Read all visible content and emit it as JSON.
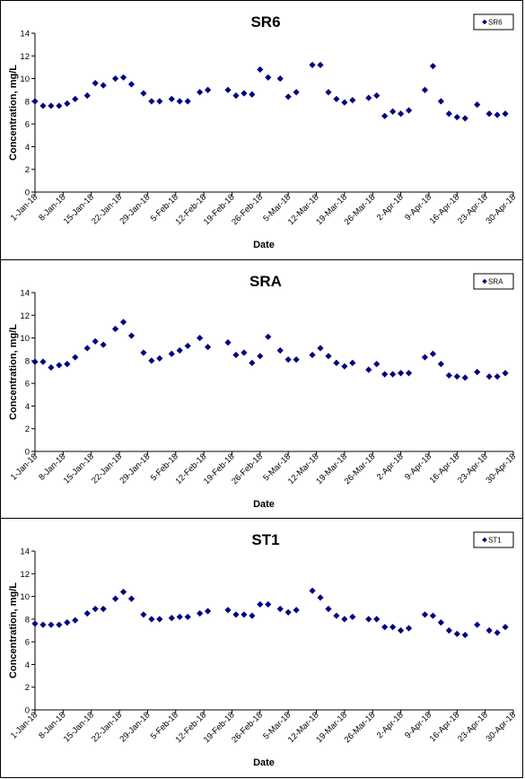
{
  "chart_data": [
    {
      "type": "scatter",
      "title": "SR6",
      "xlabel": "Date",
      "ylabel": "Concentration, mg/L",
      "ylim": [
        0,
        14
      ],
      "yticks": [
        "0",
        "2",
        "4",
        "6",
        "8",
        "10",
        "12",
        "14"
      ],
      "xlim": [
        "2018-01-01",
        "2018-04-30"
      ],
      "xticks": [
        "1-Jan-18",
        "8-Jan-18",
        "15-Jan-18",
        "22-Jan-18",
        "29-Jan-18",
        "5-Feb-18",
        "12-Feb-18",
        "19-Feb-18",
        "26-Feb-18",
        "5-Mar-18",
        "12-Mar-18",
        "19-Mar-18",
        "26-Mar-18",
        "2-Apr-18",
        "9-Apr-18",
        "16-Apr-18",
        "23-Apr-18",
        "30-Apr-18"
      ],
      "legend": "top-right",
      "color": "#000080",
      "series": [
        {
          "name": "SR6",
          "points": [
            [
              "2018-01-01",
              8.0
            ],
            [
              "2018-01-03",
              7.6
            ],
            [
              "2018-01-05",
              7.6
            ],
            [
              "2018-01-07",
              7.6
            ],
            [
              "2018-01-09",
              7.8
            ],
            [
              "2018-01-11",
              8.2
            ],
            [
              "2018-01-14",
              8.5
            ],
            [
              "2018-01-16",
              9.6
            ],
            [
              "2018-01-18",
              9.4
            ],
            [
              "2018-01-21",
              10.0
            ],
            [
              "2018-01-23",
              10.1
            ],
            [
              "2018-01-25",
              9.5
            ],
            [
              "2018-01-28",
              8.7
            ],
            [
              "2018-01-30",
              8.0
            ],
            [
              "2018-02-01",
              8.0
            ],
            [
              "2018-02-04",
              8.2
            ],
            [
              "2018-02-06",
              8.0
            ],
            [
              "2018-02-08",
              8.0
            ],
            [
              "2018-02-11",
              8.8
            ],
            [
              "2018-02-13",
              9.0
            ],
            [
              "2018-02-18",
              9.0
            ],
            [
              "2018-02-20",
              8.5
            ],
            [
              "2018-02-22",
              8.7
            ],
            [
              "2018-02-24",
              8.6
            ],
            [
              "2018-02-26",
              10.8
            ],
            [
              "2018-02-28",
              10.1
            ],
            [
              "2018-03-03",
              10.0
            ],
            [
              "2018-03-05",
              8.4
            ],
            [
              "2018-03-07",
              8.8
            ],
            [
              "2018-03-11",
              11.2
            ],
            [
              "2018-03-13",
              11.2
            ],
            [
              "2018-03-15",
              8.8
            ],
            [
              "2018-03-17",
              8.2
            ],
            [
              "2018-03-19",
              7.9
            ],
            [
              "2018-03-21",
              8.1
            ],
            [
              "2018-03-25",
              8.3
            ],
            [
              "2018-03-27",
              8.5
            ],
            [
              "2018-03-29",
              6.7
            ],
            [
              "2018-03-31",
              7.1
            ],
            [
              "2018-04-02",
              6.9
            ],
            [
              "2018-04-04",
              7.2
            ],
            [
              "2018-04-08",
              9.0
            ],
            [
              "2018-04-10",
              11.1
            ],
            [
              "2018-04-12",
              8.0
            ],
            [
              "2018-04-14",
              6.9
            ],
            [
              "2018-04-16",
              6.6
            ],
            [
              "2018-04-18",
              6.5
            ],
            [
              "2018-04-21",
              7.7
            ],
            [
              "2018-04-24",
              6.9
            ],
            [
              "2018-04-26",
              6.8
            ],
            [
              "2018-04-28",
              6.9
            ]
          ]
        }
      ]
    },
    {
      "type": "scatter",
      "title": "SRA",
      "xlabel": "Date",
      "ylabel": "Concentration, mg/L",
      "ylim": [
        0,
        14
      ],
      "yticks": [
        "0",
        "2",
        "4",
        "6",
        "8",
        "10",
        "12",
        "14"
      ],
      "xlim": [
        "2018-01-01",
        "2018-04-30"
      ],
      "xticks": [
        "1-Jan-18",
        "8-Jan-18",
        "15-Jan-18",
        "22-Jan-18",
        "29-Jan-18",
        "5-Feb-18",
        "12-Feb-18",
        "19-Feb-18",
        "26-Feb-18",
        "5-Mar-18",
        "12-Mar-18",
        "19-Mar-18",
        "26-Mar-18",
        "2-Apr-18",
        "9-Apr-18",
        "16-Apr-18",
        "23-Apr-18",
        "30-Apr-18"
      ],
      "legend": "top-right",
      "color": "#000080",
      "series": [
        {
          "name": "SRA",
          "points": [
            [
              "2018-01-01",
              7.9
            ],
            [
              "2018-01-03",
              7.9
            ],
            [
              "2018-01-05",
              7.4
            ],
            [
              "2018-01-07",
              7.6
            ],
            [
              "2018-01-09",
              7.7
            ],
            [
              "2018-01-11",
              8.3
            ],
            [
              "2018-01-14",
              9.1
            ],
            [
              "2018-01-16",
              9.7
            ],
            [
              "2018-01-18",
              9.4
            ],
            [
              "2018-01-21",
              10.8
            ],
            [
              "2018-01-23",
              11.4
            ],
            [
              "2018-01-25",
              10.2
            ],
            [
              "2018-01-28",
              8.7
            ],
            [
              "2018-01-30",
              8.0
            ],
            [
              "2018-02-01",
              8.2
            ],
            [
              "2018-02-04",
              8.6
            ],
            [
              "2018-02-06",
              8.9
            ],
            [
              "2018-02-08",
              9.3
            ],
            [
              "2018-02-11",
              10.0
            ],
            [
              "2018-02-13",
              9.2
            ],
            [
              "2018-02-18",
              9.6
            ],
            [
              "2018-02-20",
              8.5
            ],
            [
              "2018-02-22",
              8.7
            ],
            [
              "2018-02-24",
              7.8
            ],
            [
              "2018-02-26",
              8.4
            ],
            [
              "2018-02-28",
              10.1
            ],
            [
              "2018-03-03",
              8.9
            ],
            [
              "2018-03-05",
              8.1
            ],
            [
              "2018-03-07",
              8.1
            ],
            [
              "2018-03-11",
              8.5
            ],
            [
              "2018-03-13",
              9.1
            ],
            [
              "2018-03-15",
              8.4
            ],
            [
              "2018-03-17",
              7.8
            ],
            [
              "2018-03-19",
              7.5
            ],
            [
              "2018-03-21",
              7.8
            ],
            [
              "2018-03-25",
              7.2
            ],
            [
              "2018-03-27",
              7.7
            ],
            [
              "2018-03-29",
              6.8
            ],
            [
              "2018-03-31",
              6.8
            ],
            [
              "2018-04-02",
              6.9
            ],
            [
              "2018-04-04",
              6.9
            ],
            [
              "2018-04-08",
              8.3
            ],
            [
              "2018-04-10",
              8.6
            ],
            [
              "2018-04-12",
              7.7
            ],
            [
              "2018-04-14",
              6.7
            ],
            [
              "2018-04-16",
              6.6
            ],
            [
              "2018-04-18",
              6.5
            ],
            [
              "2018-04-21",
              7.0
            ],
            [
              "2018-04-24",
              6.6
            ],
            [
              "2018-04-26",
              6.6
            ],
            [
              "2018-04-28",
              6.9
            ]
          ]
        }
      ]
    },
    {
      "type": "scatter",
      "title": "ST1",
      "xlabel": "Date",
      "ylabel": "Concentration, mg/L",
      "ylim": [
        0,
        14
      ],
      "yticks": [
        "0",
        "2",
        "4",
        "6",
        "8",
        "10",
        "12",
        "14"
      ],
      "xlim": [
        "2018-01-01",
        "2018-04-30"
      ],
      "xticks": [
        "1-Jan-18",
        "8-Jan-18",
        "15-Jan-18",
        "22-Jan-18",
        "29-Jan-18",
        "5-Feb-18",
        "12-Feb-18",
        "19-Feb-18",
        "26-Feb-18",
        "5-Mar-18",
        "12-Mar-18",
        "19-Mar-18",
        "26-Mar-18",
        "2-Apr-18",
        "9-Apr-18",
        "16-Apr-18",
        "23-Apr-18",
        "30-Apr-18"
      ],
      "legend": "top-right",
      "color": "#000080",
      "series": [
        {
          "name": "ST1",
          "points": [
            [
              "2018-01-01",
              7.6
            ],
            [
              "2018-01-03",
              7.5
            ],
            [
              "2018-01-05",
              7.5
            ],
            [
              "2018-01-07",
              7.5
            ],
            [
              "2018-01-09",
              7.7
            ],
            [
              "2018-01-11",
              7.9
            ],
            [
              "2018-01-14",
              8.5
            ],
            [
              "2018-01-16",
              8.9
            ],
            [
              "2018-01-18",
              8.9
            ],
            [
              "2018-01-21",
              9.8
            ],
            [
              "2018-01-23",
              10.4
            ],
            [
              "2018-01-25",
              9.8
            ],
            [
              "2018-01-28",
              8.4
            ],
            [
              "2018-01-30",
              8.0
            ],
            [
              "2018-02-01",
              8.0
            ],
            [
              "2018-02-04",
              8.1
            ],
            [
              "2018-02-06",
              8.2
            ],
            [
              "2018-02-08",
              8.2
            ],
            [
              "2018-02-11",
              8.5
            ],
            [
              "2018-02-13",
              8.7
            ],
            [
              "2018-02-18",
              8.8
            ],
            [
              "2018-02-20",
              8.4
            ],
            [
              "2018-02-22",
              8.4
            ],
            [
              "2018-02-24",
              8.3
            ],
            [
              "2018-02-26",
              9.3
            ],
            [
              "2018-02-28",
              9.3
            ],
            [
              "2018-03-03",
              8.9
            ],
            [
              "2018-03-05",
              8.6
            ],
            [
              "2018-03-07",
              8.8
            ],
            [
              "2018-03-11",
              10.5
            ],
            [
              "2018-03-13",
              9.9
            ],
            [
              "2018-03-15",
              8.9
            ],
            [
              "2018-03-17",
              8.3
            ],
            [
              "2018-03-19",
              8.0
            ],
            [
              "2018-03-21",
              8.2
            ],
            [
              "2018-03-25",
              8.0
            ],
            [
              "2018-03-27",
              8.0
            ],
            [
              "2018-03-29",
              7.3
            ],
            [
              "2018-03-31",
              7.3
            ],
            [
              "2018-04-02",
              7.0
            ],
            [
              "2018-04-04",
              7.2
            ],
            [
              "2018-04-08",
              8.4
            ],
            [
              "2018-04-10",
              8.3
            ],
            [
              "2018-04-12",
              7.7
            ],
            [
              "2018-04-14",
              7.0
            ],
            [
              "2018-04-16",
              6.7
            ],
            [
              "2018-04-18",
              6.6
            ],
            [
              "2018-04-21",
              7.5
            ],
            [
              "2018-04-24",
              7.0
            ],
            [
              "2018-04-26",
              6.8
            ],
            [
              "2018-04-28",
              7.3
            ]
          ]
        }
      ]
    }
  ]
}
